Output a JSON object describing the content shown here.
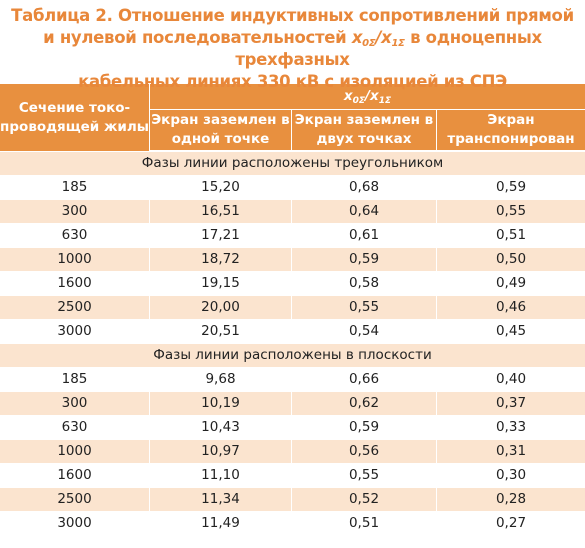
{
  "caption": {
    "line1": "Таблица 2. Отношение индуктивных сопротивлений прямой",
    "line2_pre": "и нулевой последовательностей ",
    "x0": "x",
    "x0_sub": "0Σ",
    "slash": "/",
    "x1": "x",
    "x1_sub": "1Σ",
    "line2_post": " в одноцепных трехфазных",
    "line3": "кабельных линиях 330 кВ с изоляцией из СПЭ"
  },
  "header": {
    "stub": "Сечение токо-проводящей жилы",
    "ratio_x0": "x",
    "ratio_x0_sub": "0Σ",
    "ratio_slash": "/",
    "ratio_x1": "x",
    "ratio_x1_sub": "1Σ",
    "col1": "Экран заземлен в одной точке",
    "col2": "Экран заземлен в двух точках",
    "col3": "Экран транспонирован"
  },
  "section1": {
    "title": "Фазы линии расположены треугольником",
    "rows": [
      [
        "185",
        "15,20",
        "0,68",
        "0,59"
      ],
      [
        "300",
        "16,51",
        "0,64",
        "0,55"
      ],
      [
        "630",
        "17,21",
        "0,61",
        "0,51"
      ],
      [
        "1000",
        "18,72",
        "0,59",
        "0,50"
      ],
      [
        "1600",
        "19,15",
        "0,58",
        "0,49"
      ],
      [
        "2500",
        "20,00",
        "0,55",
        "0,46"
      ],
      [
        "3000",
        "20,51",
        "0,54",
        "0,45"
      ]
    ]
  },
  "section2": {
    "title": "Фазы линии расположены в плоскости",
    "rows": [
      [
        "185",
        "9,68",
        "0,66",
        "0,40"
      ],
      [
        "300",
        "10,19",
        "0,62",
        "0,37"
      ],
      [
        "630",
        "10,43",
        "0,59",
        "0,33"
      ],
      [
        "1000",
        "10,97",
        "0,56",
        "0,31"
      ],
      [
        "1600",
        "11,10",
        "0,55",
        "0,30"
      ],
      [
        "2500",
        "11,34",
        "0,52",
        "0,28"
      ],
      [
        "3000",
        "11,49",
        "0,51",
        "0,27"
      ]
    ]
  },
  "colors": {
    "accent": "#e8903f",
    "title": "#e8873a",
    "stripe": "#fbe4cf"
  }
}
